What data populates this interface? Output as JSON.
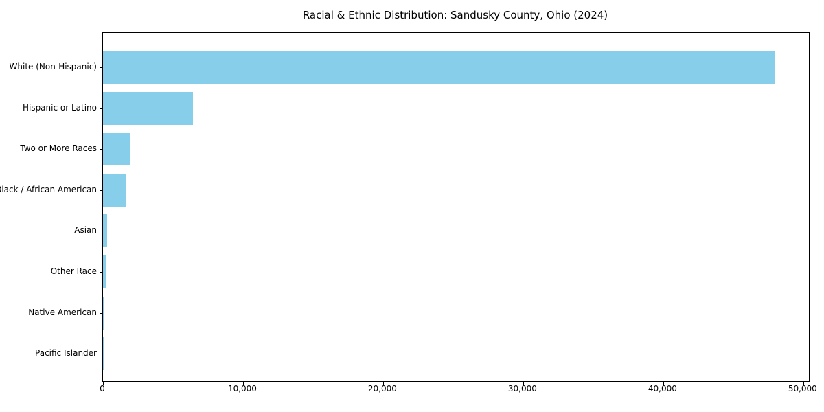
{
  "figure": {
    "background": "#ffffff",
    "spine_color": "#000000",
    "text_color": "#000000"
  },
  "chart_data": {
    "type": "bar",
    "orientation": "horizontal",
    "title": "Racial & Ethnic Distribution: Sandusky County, Ohio (2024)",
    "xlabel": "",
    "ylabel": "",
    "categories": [
      "White (Non-Hispanic)",
      "Hispanic or Latino",
      "Two or More Races",
      "Black / African American",
      "Asian",
      "Other Race",
      "Native American",
      "Pacific Islander"
    ],
    "values": [
      48000,
      6400,
      1950,
      1600,
      300,
      250,
      80,
      20
    ],
    "bar_color": "#87CEEB",
    "xlim": [
      0,
      50400
    ],
    "x_ticks": [
      0,
      10000,
      20000,
      30000,
      40000,
      50000
    ],
    "x_tick_labels": [
      "0",
      "10,000",
      "20,000",
      "30,000",
      "40,000",
      "50,000"
    ],
    "grid": false,
    "legend": false
  }
}
